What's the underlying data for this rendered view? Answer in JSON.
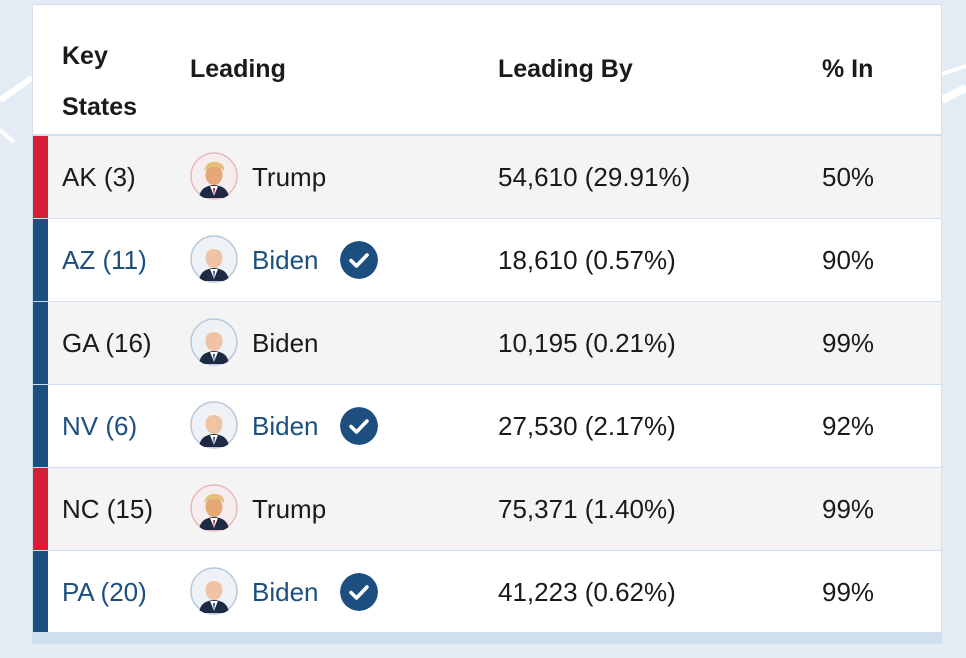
{
  "header": {
    "key_states_line1": "Key",
    "key_states_line2": "States",
    "leading": "Leading",
    "leading_by": "Leading By",
    "pct_in": "% In"
  },
  "colors": {
    "republican": "#d51e35",
    "democrat": "#1c4e80",
    "link": "#1c4e80"
  },
  "rows": [
    {
      "state": "AK (3)",
      "candidate": "Trump",
      "leading_by": "54,610 (29.91%)",
      "pct_in": "50%",
      "party": "republican",
      "called": false,
      "state_link": false
    },
    {
      "state": "AZ (11)",
      "candidate": "Biden",
      "leading_by": "18,610 (0.57%)",
      "pct_in": "90%",
      "party": "democrat",
      "called": true,
      "state_link": true
    },
    {
      "state": "GA (16)",
      "candidate": "Biden",
      "leading_by": "10,195 (0.21%)",
      "pct_in": "99%",
      "party": "democrat",
      "called": false,
      "state_link": false
    },
    {
      "state": "NV (6)",
      "candidate": "Biden",
      "leading_by": "27,530 (2.17%)",
      "pct_in": "92%",
      "party": "democrat",
      "called": true,
      "state_link": true
    },
    {
      "state": "NC (15)",
      "candidate": "Trump",
      "leading_by": "75,371 (1.40%)",
      "pct_in": "99%",
      "party": "republican",
      "called": false,
      "state_link": false
    },
    {
      "state": "PA (20)",
      "candidate": "Biden",
      "leading_by": "41,223 (0.62%)",
      "pct_in": "99%",
      "party": "democrat",
      "called": true,
      "state_link": true
    }
  ]
}
